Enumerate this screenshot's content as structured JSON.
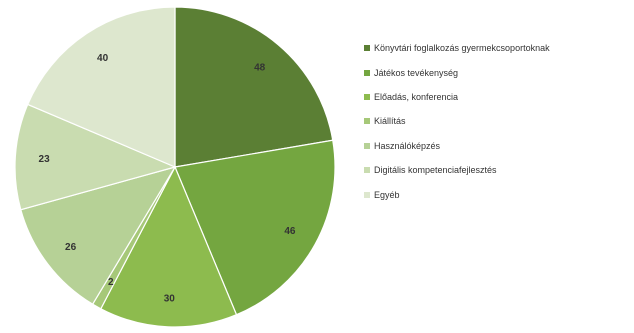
{
  "chart_data": {
    "type": "pie",
    "title": "",
    "categories": [
      "Könyvtári foglalkozás gyermekcsoportoknak",
      "Játékos tevékenység",
      "Előadás, konferencia",
      "Kiállítás",
      "Használóképzés",
      "Digitális kompetenciafejlesztés",
      "Egyéb"
    ],
    "values": [
      48,
      46,
      30,
      2,
      26,
      23,
      40
    ],
    "colors": [
      "#5b7f34",
      "#74a640",
      "#8dbb4e",
      "#a6c878",
      "#b6d196",
      "#c9dcb0",
      "#dde7ce"
    ],
    "legend_position": "right"
  }
}
